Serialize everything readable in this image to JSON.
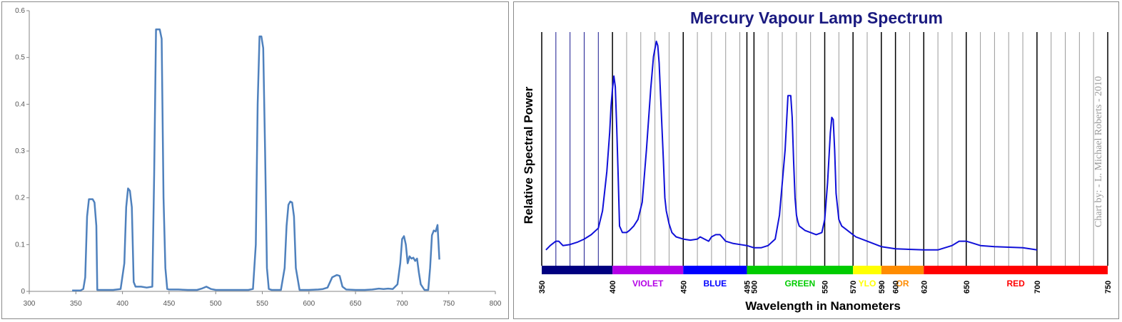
{
  "chart_data": [
    {
      "type": "line",
      "title": "",
      "xlabel": "",
      "ylabel": "",
      "xlim": [
        300,
        800
      ],
      "ylim": [
        0,
        0.6
      ],
      "x_ticks": [
        "300",
        "350",
        "400",
        "450",
        "500",
        "550",
        "600",
        "650",
        "700",
        "750",
        "800"
      ],
      "y_ticks": [
        "0",
        "0.1",
        "0.2",
        "0.3",
        "0.4",
        "0.5",
        "0.6"
      ],
      "grid": false,
      "color": "#4f81bd",
      "series": [
        {
          "x": [
            346,
            350,
            355,
            358,
            360,
            362,
            364,
            368,
            370,
            372,
            373,
            375,
            380,
            390,
            398,
            402,
            404,
            406,
            408,
            410,
            412,
            414,
            416,
            420,
            426,
            432,
            434,
            436,
            437,
            440,
            442,
            444,
            446,
            448,
            450,
            460,
            470,
            480,
            485,
            490,
            495,
            500,
            510,
            520,
            530,
            535,
            540,
            543,
            545,
            547,
            549,
            551,
            553,
            555,
            557,
            560,
            563,
            570,
            574,
            576,
            578,
            580,
            582,
            584,
            586,
            590,
            600,
            610,
            615,
            620,
            625,
            630,
            633,
            636,
            640,
            650,
            660,
            668,
            675,
            680,
            685,
            690,
            695,
            698,
            700,
            702,
            704,
            706,
            708,
            710,
            712,
            714,
            716,
            718,
            720,
            724,
            728,
            730,
            732,
            734,
            736,
            738,
            740
          ],
          "y": [
            0.002,
            0.002,
            0.002,
            0.005,
            0.03,
            0.16,
            0.197,
            0.197,
            0.19,
            0.14,
            0.003,
            0.003,
            0.003,
            0.003,
            0.005,
            0.06,
            0.18,
            0.22,
            0.215,
            0.18,
            0.02,
            0.01,
            0.01,
            0.01,
            0.008,
            0.01,
            0.25,
            0.56,
            0.56,
            0.56,
            0.54,
            0.2,
            0.05,
            0.005,
            0.004,
            0.004,
            0.003,
            0.003,
            0.006,
            0.01,
            0.005,
            0.003,
            0.003,
            0.003,
            0.003,
            0.003,
            0.005,
            0.1,
            0.4,
            0.545,
            0.545,
            0.52,
            0.3,
            0.05,
            0.005,
            0.003,
            0.003,
            0.003,
            0.05,
            0.14,
            0.185,
            0.192,
            0.19,
            0.16,
            0.05,
            0.003,
            0.003,
            0.004,
            0.005,
            0.008,
            0.03,
            0.035,
            0.033,
            0.01,
            0.004,
            0.003,
            0.003,
            0.004,
            0.006,
            0.005,
            0.006,
            0.005,
            0.015,
            0.06,
            0.112,
            0.118,
            0.1,
            0.06,
            0.075,
            0.07,
            0.072,
            0.065,
            0.07,
            0.04,
            0.015,
            0.003,
            0.003,
            0.05,
            0.12,
            0.13,
            0.128,
            0.142,
            0.068
          ]
        }
      ]
    },
    {
      "type": "line",
      "title": "Mercury Vapour Lamp Spectrum",
      "xlabel": "Wavelength in Nanometers",
      "ylabel": "Relative Spectral Power",
      "xlim": [
        350,
        750
      ],
      "x_ticks": [
        "350",
        "400",
        "450",
        "495",
        "500",
        "550",
        "570",
        "590",
        "600",
        "620",
        "650",
        "700",
        "750"
      ],
      "grid": true,
      "color": "#1010d8",
      "credit": "Chart by: - L. Michael Roberts - 2010",
      "bands": [
        {
          "label": "",
          "start": 350,
          "end": 400,
          "color": "#000080"
        },
        {
          "label": "VIOLET",
          "start": 400,
          "end": 450,
          "color": "#b400e6"
        },
        {
          "label": "BLUE",
          "start": 450,
          "end": 495,
          "color": "#0000ff"
        },
        {
          "label": "GREEN",
          "start": 495,
          "end": 570,
          "color": "#00cc00"
        },
        {
          "label": "YLO",
          "start": 570,
          "end": 590,
          "color": "#ffff00"
        },
        {
          "label": "OR",
          "start": 590,
          "end": 620,
          "color": "#ff8c00"
        },
        {
          "label": "RED",
          "start": 620,
          "end": 750,
          "color": "#ff0000"
        }
      ],
      "series": [
        {
          "x": [
            353,
            356,
            360,
            362,
            365,
            370,
            375,
            380,
            385,
            390,
            393,
            396,
            398,
            399,
            400,
            401,
            402,
            403,
            404,
            405,
            407,
            410,
            412,
            415,
            418,
            421,
            424,
            427,
            429,
            431,
            432,
            433,
            434,
            435,
            436,
            437,
            438,
            440,
            442,
            445,
            450,
            455,
            460,
            462,
            465,
            468,
            470,
            473,
            476,
            480,
            485,
            490,
            495,
            500,
            505,
            510,
            515,
            518,
            522,
            524,
            526,
            527,
            528,
            529,
            530,
            531,
            532,
            534,
            536,
            540,
            544,
            548,
            550,
            552,
            554,
            555,
            556,
            557,
            558,
            560,
            562,
            564,
            568,
            572,
            580,
            590,
            600,
            620,
            630,
            640,
            645,
            650,
            655,
            660,
            670,
            690,
            700
          ],
          "y": [
            0.04,
            0.06,
            0.08,
            0.08,
            0.06,
            0.065,
            0.075,
            0.09,
            0.11,
            0.14,
            0.22,
            0.4,
            0.58,
            0.7,
            0.78,
            0.84,
            0.79,
            0.6,
            0.38,
            0.15,
            0.12,
            0.12,
            0.13,
            0.15,
            0.18,
            0.26,
            0.5,
            0.78,
            0.93,
            1.0,
            0.98,
            0.9,
            0.75,
            0.6,
            0.45,
            0.28,
            0.22,
            0.16,
            0.12,
            0.1,
            0.09,
            0.085,
            0.09,
            0.1,
            0.09,
            0.08,
            0.1,
            0.11,
            0.11,
            0.08,
            0.07,
            0.065,
            0.06,
            0.05,
            0.05,
            0.06,
            0.09,
            0.2,
            0.5,
            0.75,
            0.75,
            0.65,
            0.45,
            0.28,
            0.2,
            0.17,
            0.15,
            0.14,
            0.13,
            0.12,
            0.11,
            0.12,
            0.18,
            0.35,
            0.58,
            0.65,
            0.64,
            0.5,
            0.3,
            0.18,
            0.15,
            0.14,
            0.12,
            0.1,
            0.08,
            0.055,
            0.045,
            0.04,
            0.04,
            0.06,
            0.08,
            0.08,
            0.07,
            0.06,
            0.055,
            0.05,
            0.04
          ]
        }
      ]
    }
  ]
}
